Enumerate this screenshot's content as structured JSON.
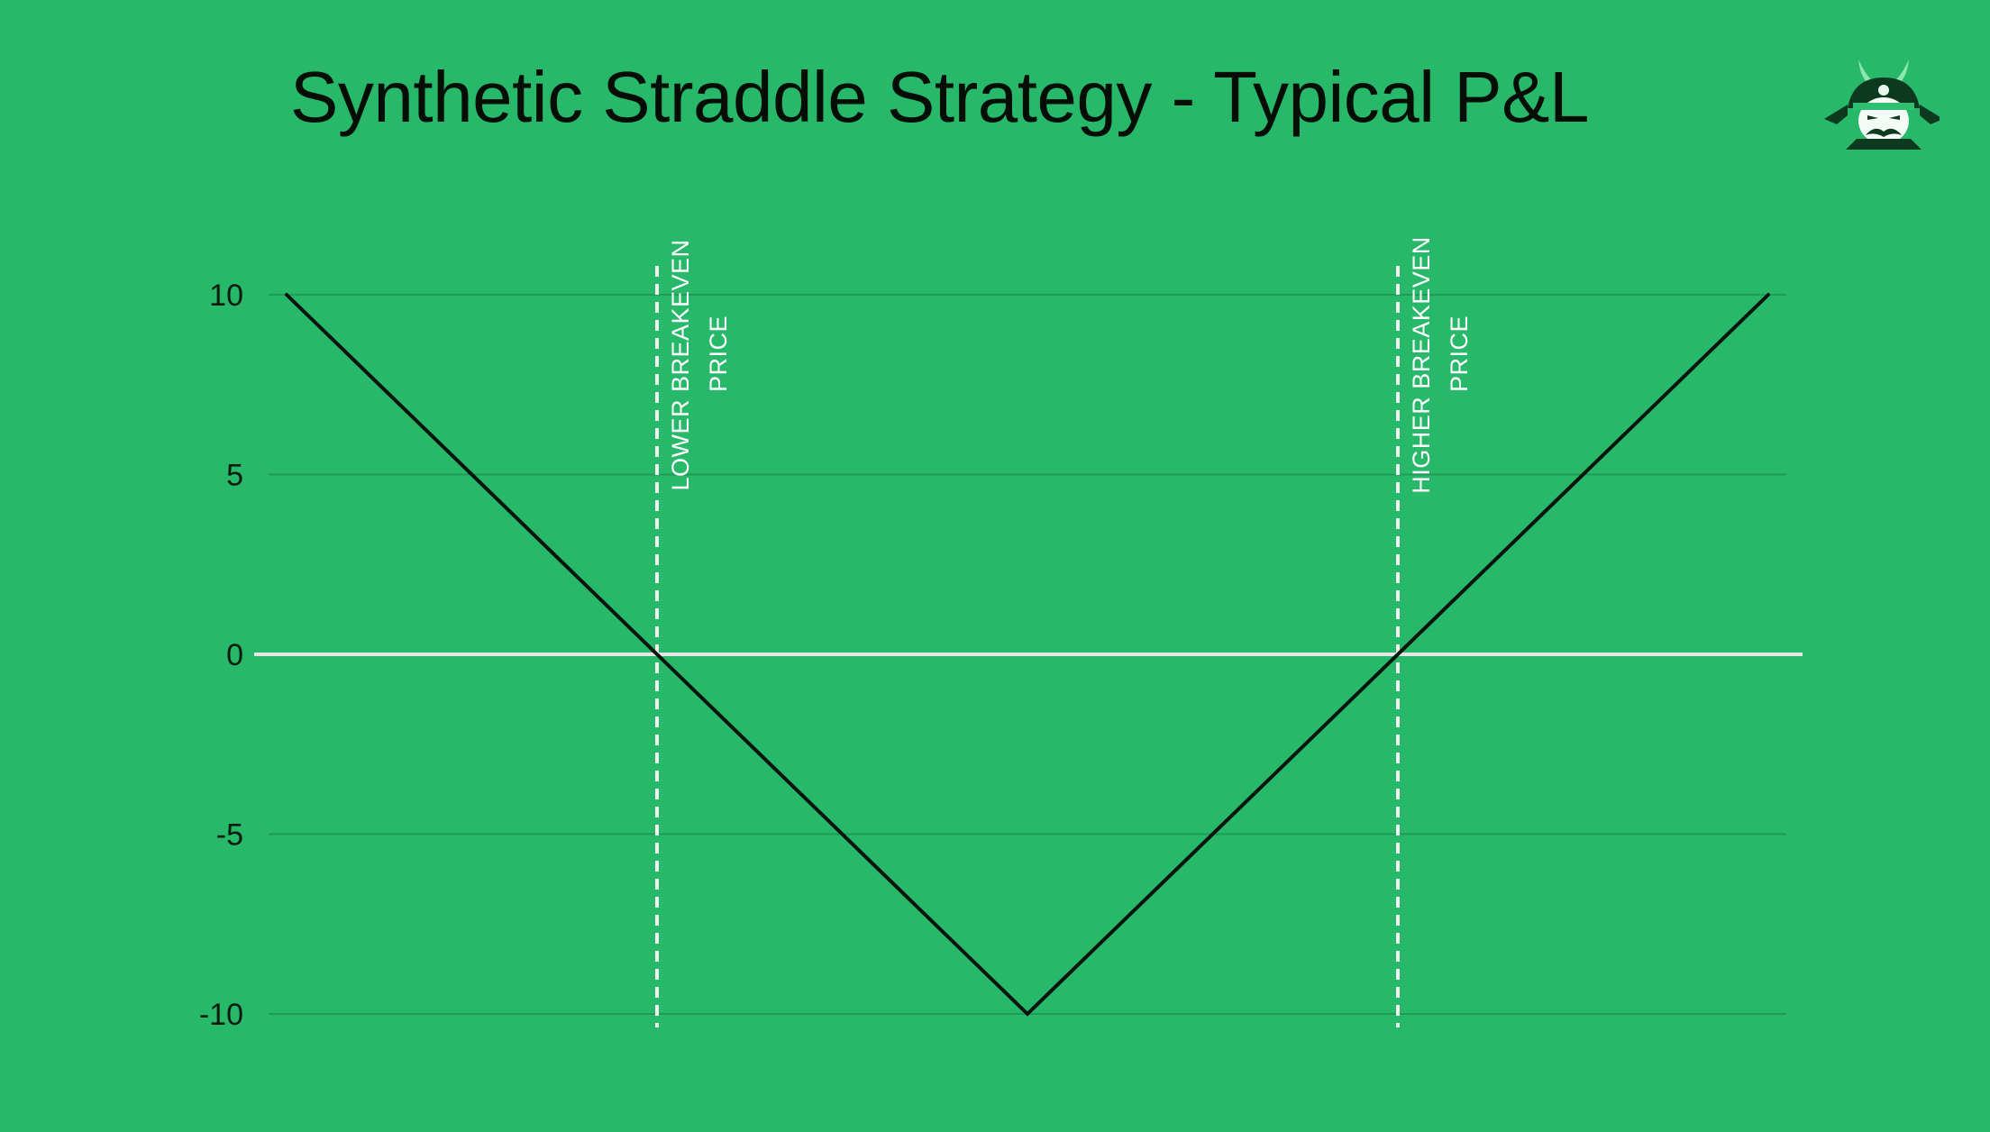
{
  "title": "Synthetic Straddle Strategy - Typical P&L",
  "logo": {
    "icon": "samurai-logo-icon"
  },
  "colors": {
    "background": "#27b86a",
    "pnl_line": "#0a140d",
    "zero_line": "#e6e6e6",
    "grid": "#1f9a57",
    "breakeven_line": "#f0f0f0"
  },
  "chart_data": {
    "type": "line",
    "title": "Synthetic Straddle Strategy - Typical P&L",
    "xlabel": "",
    "ylabel": "",
    "ylim": [
      -10,
      10
    ],
    "yticks": [
      10,
      5,
      0,
      -5,
      -10
    ],
    "grid": true,
    "series": [
      {
        "x": [
          0,
          1,
          2
        ],
        "y": [
          10,
          -10,
          10
        ]
      }
    ],
    "annotations": [
      {
        "x": 0.5,
        "lines": [
          "LOWER BREAKEVEN",
          "PRICE"
        ]
      },
      {
        "x": 1.5,
        "lines": [
          "HIGHER BREAKEVEN",
          "PRICE"
        ]
      }
    ]
  }
}
